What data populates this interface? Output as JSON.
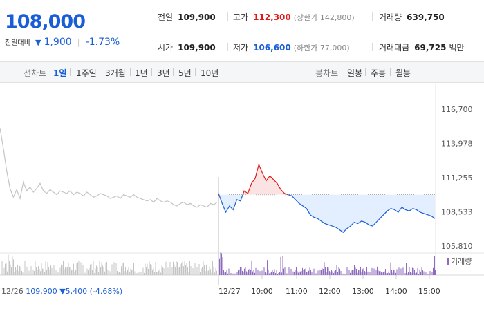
{
  "summary": {
    "price": "108,000",
    "change_label": "전일대비",
    "change_arrow": "▼",
    "change_value": "1,900",
    "change_rate": "-1.73%",
    "prev_close_label": "전일",
    "prev_close": "109,900",
    "open_label": "시가",
    "open": "109,900",
    "high_label": "고가",
    "high": "112,300",
    "upper_limit": "(상한가 142,800)",
    "low_label": "저가",
    "low": "106,600",
    "lower_limit": "(하한가 77,000)",
    "volume_label": "거래량",
    "volume": "639,750",
    "amount_label": "거래대금",
    "amount": "69,725",
    "amount_unit": "백만"
  },
  "periods": {
    "line_label": "선차트",
    "line_items": [
      "1일",
      "1주일",
      "3개월",
      "1년",
      "3년",
      "5년",
      "10년"
    ],
    "selected": "1일",
    "candle_label": "봉차트",
    "candle_items": [
      "일봉",
      "주봉",
      "월봉"
    ]
  },
  "chart_data": {
    "type": "line",
    "y_ticks": [
      "116,700",
      "113,978",
      "111,255",
      "108,533",
      "105,810"
    ],
    "y_tick_values": [
      116700,
      113978,
      111255,
      108533,
      105810
    ],
    "ylim": [
      105810,
      116700
    ],
    "reference_value": 109900,
    "x_ticks": [
      "12/27",
      "10:00",
      "11:00",
      "12:00",
      "13:00",
      "14:00",
      "15:00"
    ],
    "prev_day_label": "12/26",
    "prev_day_close": "109,900",
    "prev_day_arrow": "▼",
    "prev_day_change": "5,400",
    "prev_day_rate": "(-4.68%)",
    "volume_legend": "거래량",
    "colors": {
      "up": "#e01a1a",
      "down": "#1a5ed6",
      "prev": "#c4c4c4",
      "volume_today": "#8e6bbf",
      "volume_prev": "#c4c4c4"
    },
    "series": [
      {
        "values": [
          115200,
          113600,
          111800,
          110400,
          109700,
          110300,
          109600,
          110900,
          110200,
          110500,
          110100,
          110400,
          110800,
          110200,
          110000,
          110300,
          110100,
          109900,
          110200,
          110100,
          110000,
          110200,
          109900,
          110100,
          110000,
          109800,
          110100,
          109900,
          109700,
          109800,
          110000,
          109900,
          109800,
          109600,
          109700,
          109800,
          109600,
          109900,
          109800,
          109700,
          109900,
          109700,
          109600,
          109500,
          109400,
          109500,
          109300,
          109600,
          109400,
          109300,
          109400,
          109300,
          109100,
          109000,
          109200,
          109300,
          109100,
          109200,
          109000,
          108900,
          109100,
          109000,
          108900,
          109200,
          109100,
          109300
        ]
      },
      {
        "values": [
          110000,
          109200,
          108500,
          109000,
          108700,
          109500,
          109400,
          110200,
          110000,
          110800,
          111200,
          112300,
          111600,
          111000,
          111400,
          111100,
          110800,
          110300,
          110000,
          109900,
          109800,
          109500,
          109200,
          109000,
          108800,
          108300,
          108100,
          108000,
          107800,
          107600,
          107500,
          107400,
          107300,
          107100,
          106900,
          107200,
          107400,
          107700,
          107600,
          107800,
          107700,
          107500,
          107400,
          107700,
          108000,
          108300,
          108600,
          108800,
          108700,
          108500,
          108900,
          108700,
          108600,
          108800,
          108700,
          108500,
          108400,
          108300,
          108200,
          108000
        ]
      }
    ]
  }
}
